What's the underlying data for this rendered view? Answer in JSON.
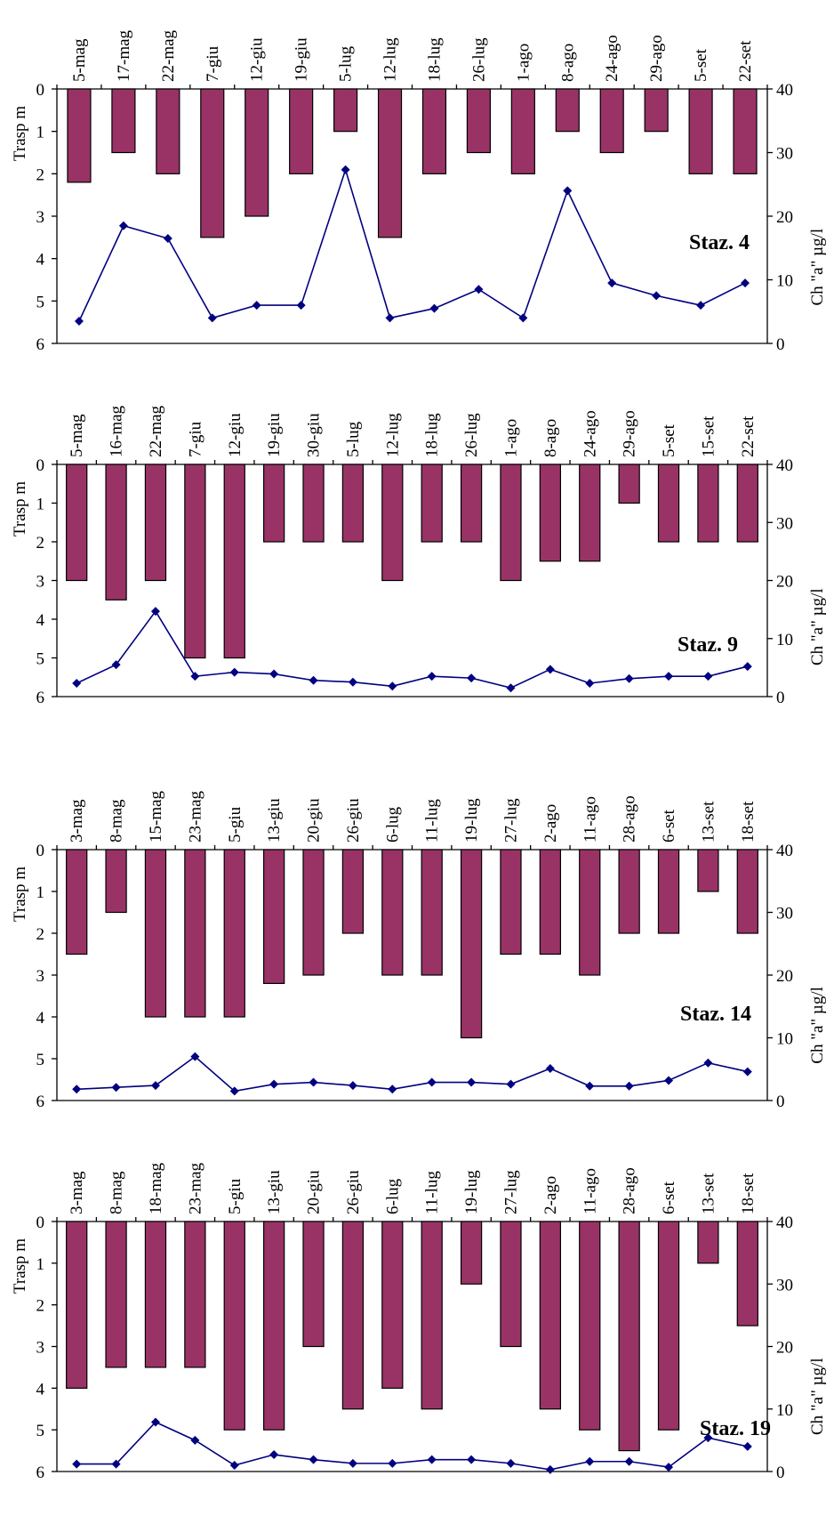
{
  "colors": {
    "bar": "#993366",
    "line": "#000080",
    "axis": "#000000"
  },
  "chart_data": [
    {
      "type": "bar+line",
      "title": "Staz. 4",
      "ylabel_left": "Trasp m",
      "ylabel_right": "Ch \"a\" µg/l",
      "ylim_left": [
        6,
        0
      ],
      "ylim_right": [
        0,
        40
      ],
      "left_ticks": [
        "0",
        "1",
        "2",
        "3",
        "4",
        "5",
        "6"
      ],
      "right_ticks": [
        "40",
        "30",
        "20",
        "10",
        "0"
      ],
      "categories": [
        "5-mag",
        "17-mag",
        "22-mag",
        "7-giu",
        "12-giu",
        "19-giu",
        "5-lug",
        "12-lug",
        "18-lug",
        "26-lug",
        "1-ago",
        "8-ago",
        "24-ago",
        "29-ago",
        "5-set",
        "22-set"
      ],
      "series": [
        {
          "values": [
            2.2,
            1.5,
            2,
            3.5,
            3,
            2,
            1,
            3.5,
            2,
            1.5,
            2,
            1,
            1.5,
            1,
            2,
            2
          ]
        },
        {
          "values": [
            3.5,
            18.5,
            16.5,
            4,
            6,
            6,
            27.3,
            4,
            5.5,
            8.5,
            4,
            24,
            9.5,
            7.5,
            6,
            9.5
          ]
        }
      ]
    },
    {
      "type": "bar+line",
      "title": "Staz. 9",
      "ylabel_left": "Trasp m",
      "ylabel_right": "Ch \"a\" µg/l",
      "ylim_left": [
        6,
        0
      ],
      "ylim_right": [
        0,
        40
      ],
      "left_ticks": [
        "0",
        "1",
        "2",
        "3",
        "4",
        "5",
        "6"
      ],
      "right_ticks": [
        "40",
        "30",
        "20",
        "10",
        "0"
      ],
      "categories": [
        "5-mag",
        "16-mag",
        "22-mag",
        "7-giu",
        "12-giu",
        "19-giu",
        "30-giu",
        "5-lug",
        "12-lug",
        "18-lug",
        "26-lug",
        "1-ago",
        "8-ago",
        "24-ago",
        "29-ago",
        "5-set",
        "15-set",
        "22-set"
      ],
      "series": [
        {
          "values": [
            3,
            3.5,
            3,
            5,
            5,
            2,
            2,
            2,
            3,
            2,
            2,
            3,
            2.5,
            2.5,
            1,
            2,
            2,
            2
          ]
        },
        {
          "values": [
            2.3,
            5.5,
            14.7,
            3.5,
            4.2,
            3.9,
            2.8,
            2.5,
            1.8,
            3.5,
            3.2,
            1.5,
            4.7,
            2.3,
            3.1,
            3.5,
            3.5,
            5.2
          ]
        }
      ]
    },
    {
      "type": "bar+line",
      "title": "Staz. 14",
      "ylabel_left": "Trasp m",
      "ylabel_right": "Ch \"a\" µg/l",
      "ylim_left": [
        6,
        0
      ],
      "ylim_right": [
        0,
        40
      ],
      "left_ticks": [
        "0",
        "1",
        "2",
        "3",
        "4",
        "5",
        "6"
      ],
      "right_ticks": [
        "40",
        "30",
        "20",
        "10",
        "0"
      ],
      "categories": [
        "3-mag",
        "8-mag",
        "15-mag",
        "23-mag",
        "5-giu",
        "13-giu",
        "20-giu",
        "26-giu",
        "6-lug",
        "11-lug",
        "19-lug",
        "27-lug",
        "2-ago",
        "11-ago",
        "28-ago",
        "6-set",
        "13-set",
        "18-set"
      ],
      "series": [
        {
          "values": [
            2.5,
            1.5,
            4,
            4,
            4,
            3.2,
            3,
            2,
            3,
            3,
            4.5,
            2.5,
            2.5,
            3,
            2,
            2,
            1,
            2
          ]
        },
        {
          "values": [
            1.8,
            2.1,
            2.4,
            7,
            1.5,
            2.6,
            2.9,
            2.4,
            1.8,
            2.9,
            2.9,
            2.6,
            5.1,
            2.3,
            2.3,
            3.2,
            6,
            4.6
          ]
        }
      ]
    },
    {
      "type": "bar+line",
      "title": "Staz. 19",
      "ylabel_left": "Trasp m",
      "ylabel_right": "Ch \"a\" µg/l",
      "ylim_left": [
        6,
        0
      ],
      "ylim_right": [
        0,
        40
      ],
      "left_ticks": [
        "0",
        "1",
        "2",
        "3",
        "4",
        "5",
        "6"
      ],
      "right_ticks": [
        "40",
        "30",
        "20",
        "10",
        "0"
      ],
      "categories": [
        "3-mag",
        "8-mag",
        "18-mag",
        "23-mag",
        "5-giu",
        "13-giu",
        "20-giu",
        "26-giu",
        "6-lug",
        "11-lug",
        "19-lug",
        "27-lug",
        "2-ago",
        "11-ago",
        "28-ago",
        "6-set",
        "13-set",
        "18-set"
      ],
      "series": [
        {
          "values": [
            4,
            3.5,
            3.5,
            3.5,
            5,
            5,
            3,
            4.5,
            4,
            4.5,
            1.5,
            3,
            4.5,
            5,
            5.5,
            5,
            1,
            2.5
          ]
        },
        {
          "values": [
            1.2,
            1.2,
            7.9,
            5,
            1,
            2.7,
            1.9,
            1.3,
            1.3,
            1.9,
            1.9,
            1.3,
            0.3,
            1.6,
            1.6,
            0.7,
            5.4,
            4
          ]
        }
      ]
    }
  ]
}
